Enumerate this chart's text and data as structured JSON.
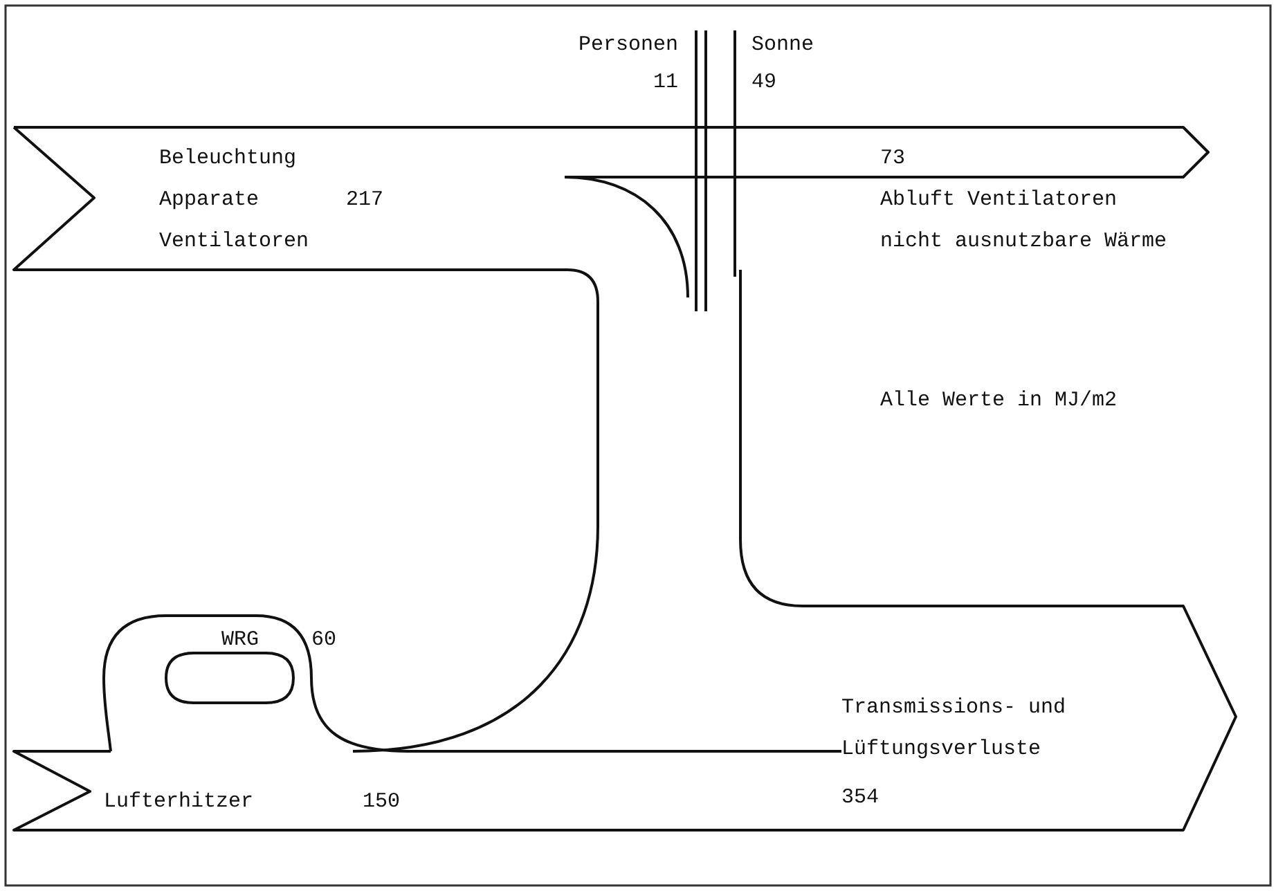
{
  "chart_data": {
    "type": "other",
    "categories": [
      "Personen",
      "Sonne",
      "Beleuchtung\nApparate\nVentilatoren",
      "Abluft Ventilatoren\nnicht ausnutzbare Wärme",
      "WRG",
      "Lufterhitzer",
      "Transmissions- und\nLüftungsverluste"
    ],
    "values": [
      11,
      49,
      217,
      73,
      60,
      150,
      354
    ],
    "data_labels": true,
    "annotations": [
      "Alle Werte in MJ/m2"
    ]
  }
}
